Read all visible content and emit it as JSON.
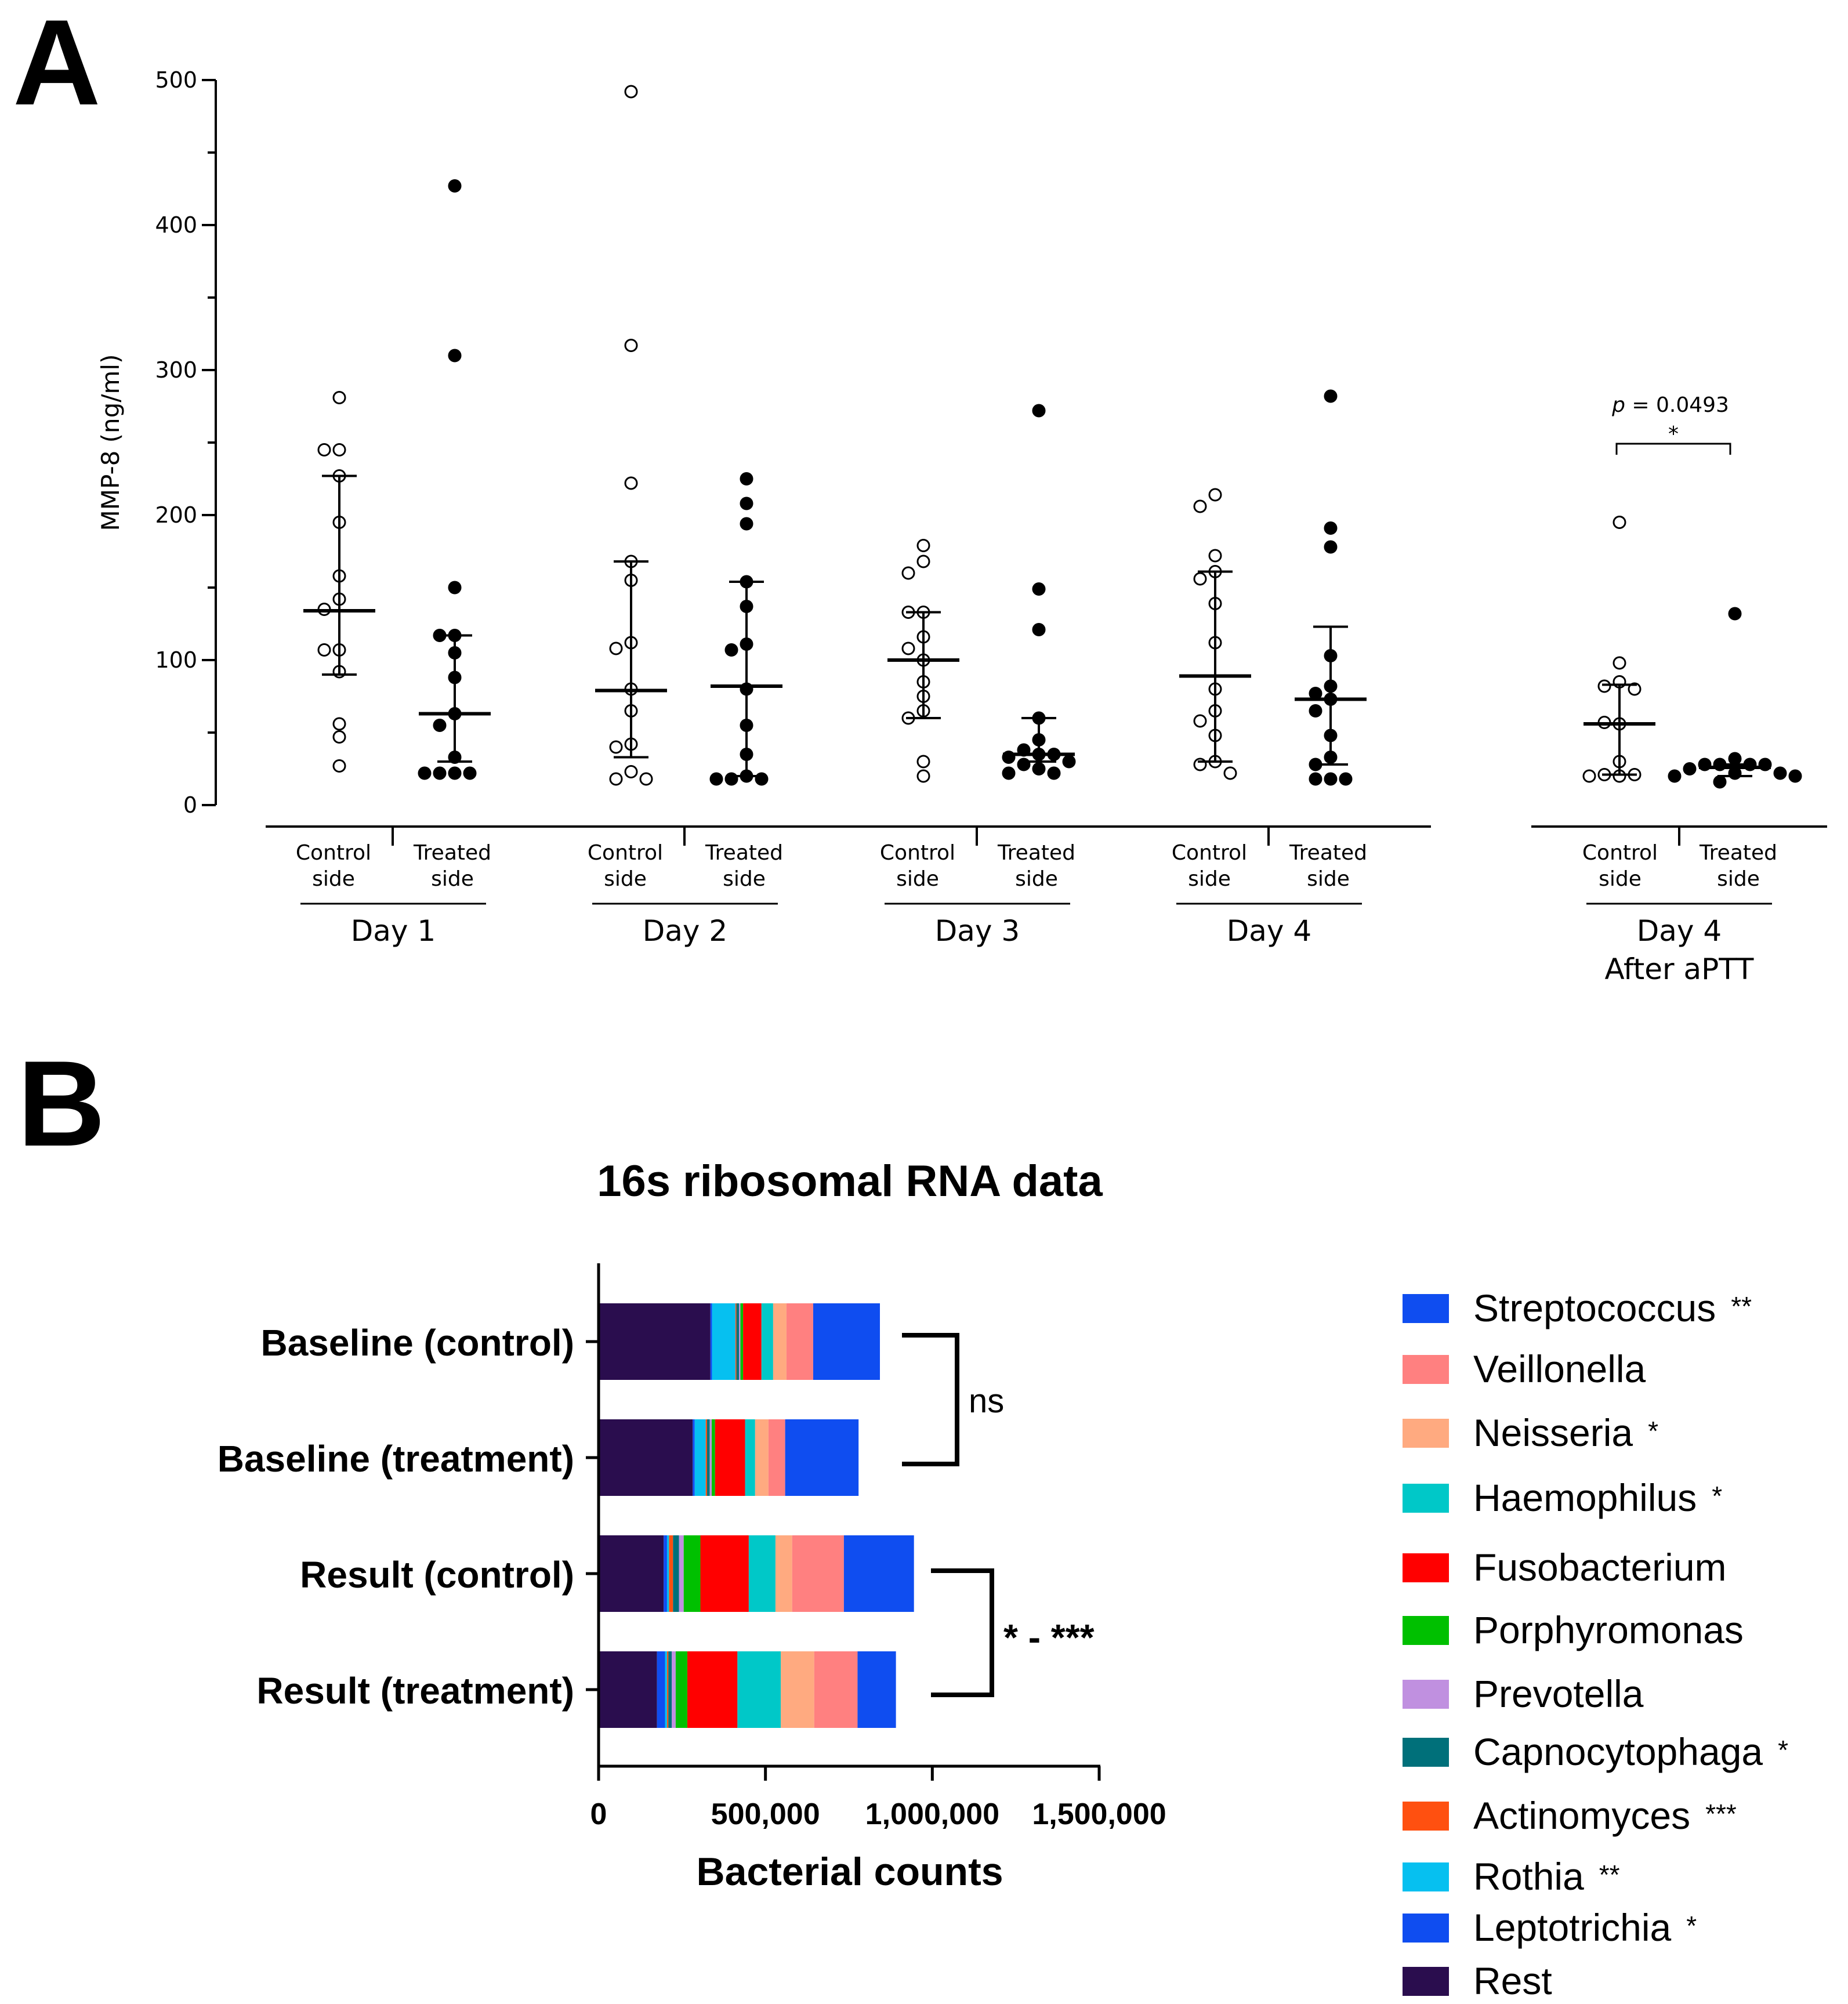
{
  "panels": {
    "a": "A",
    "b": "B"
  },
  "chart_data": [
    {
      "type": "scatter",
      "panel": "A",
      "ylabel": "MMP-8 (ng/ml)",
      "ylim": [
        0,
        500
      ],
      "yticks": [
        0,
        100,
        200,
        300,
        400,
        500
      ],
      "day_labels": [
        "Day 1",
        "Day 2",
        "Day 3",
        "Day 4"
      ],
      "extra_label": [
        "Day 4",
        "After aPTT"
      ],
      "side_labels": {
        "control": [
          "Control",
          "side"
        ],
        "treated": [
          "Treated",
          "side"
        ]
      },
      "annotation": {
        "p_letter": "p",
        "p_text": " = 0.0493",
        "star": "*"
      },
      "groups": [
        {
          "day": "Day 1",
          "side": "control",
          "filled": false,
          "median": 134,
          "q1": 90,
          "q3": 227,
          "points": [
            281,
            245,
            245,
            227,
            195,
            158,
            142,
            135,
            107,
            107,
            92,
            56,
            47,
            27
          ]
        },
        {
          "day": "Day 1",
          "side": "treated",
          "filled": true,
          "median": 63,
          "q1": 30,
          "q3": 117,
          "points": [
            427,
            310,
            150,
            117,
            117,
            105,
            88,
            63,
            55,
            33,
            22,
            22,
            22,
            22
          ]
        },
        {
          "day": "Day 2",
          "side": "control",
          "filled": false,
          "median": 79,
          "q1": 33,
          "q3": 168,
          "points": [
            492,
            317,
            222,
            168,
            155,
            112,
            108,
            80,
            65,
            42,
            40,
            23,
            18,
            18
          ]
        },
        {
          "day": "Day 2",
          "side": "treated",
          "filled": true,
          "median": 82,
          "q1": 20,
          "q3": 154,
          "points": [
            225,
            208,
            194,
            154,
            137,
            111,
            107,
            80,
            55,
            35,
            20,
            18,
            18,
            18
          ]
        },
        {
          "day": "Day 3",
          "side": "control",
          "filled": false,
          "median": 100,
          "q1": 60,
          "q3": 133,
          "points": [
            179,
            168,
            160,
            133,
            133,
            116,
            108,
            100,
            85,
            75,
            65,
            60,
            30,
            20
          ]
        },
        {
          "day": "Day 3",
          "side": "treated",
          "filled": true,
          "median": 35,
          "q1": 30,
          "q3": 60,
          "points": [
            272,
            149,
            121,
            60,
            45,
            38,
            35,
            35,
            33,
            30,
            28,
            25,
            22,
            22
          ]
        },
        {
          "day": "Day 4",
          "side": "control",
          "filled": false,
          "median": 89,
          "q1": 30,
          "q3": 161,
          "points": [
            214,
            206,
            172,
            161,
            156,
            139,
            112,
            80,
            65,
            58,
            48,
            30,
            28,
            22
          ]
        },
        {
          "day": "Day 4",
          "side": "treated",
          "filled": true,
          "median": 73,
          "q1": 28,
          "q3": 123,
          "points": [
            282,
            191,
            178,
            103,
            82,
            77,
            73,
            65,
            48,
            33,
            28,
            18,
            18,
            18
          ]
        },
        {
          "day": "After aPTT",
          "side": "control",
          "filled": false,
          "median": 56,
          "q1": 21,
          "q3": 83,
          "points": [
            195,
            98,
            85,
            82,
            80,
            56,
            57,
            30,
            20,
            21,
            21,
            20
          ]
        },
        {
          "day": "After aPTT",
          "side": "treated",
          "filled": true,
          "median": 26,
          "q1": 20,
          "q3": 28,
          "points": [
            132,
            32,
            28,
            28,
            28,
            28,
            25,
            22,
            22,
            20,
            20,
            16
          ]
        }
      ]
    },
    {
      "type": "bar",
      "panel": "B",
      "orientation": "horizontal",
      "stacked": true,
      "title": "16s ribosomal RNA data",
      "xlabel": "Bacterial counts",
      "xlim": [
        0,
        1500000
      ],
      "xtick_labels": [
        "0",
        "500,000",
        "1,000,000",
        "1,500,000"
      ],
      "xtick_values": [
        0,
        500000,
        1000000,
        1500000
      ],
      "categories": [
        "Baseline (control)",
        "Baseline (treatment)",
        "Result (control)",
        "Result (treatment)"
      ],
      "series": [
        {
          "name": "Rest",
          "color": "#2a0d4e",
          "values": [
            335000,
            282000,
            195000,
            175000
          ]
        },
        {
          "name": "Leptotrichia",
          "color": "#0f4df0",
          "values": [
            5000,
            6000,
            10000,
            24000
          ]
        },
        {
          "name": "Rothia",
          "color": "#06c0f0",
          "values": [
            70000,
            33000,
            6000,
            6000
          ]
        },
        {
          "name": "Actinomyces",
          "color": "#ff5010",
          "values": [
            3000,
            4000,
            12000,
            4000
          ]
        },
        {
          "name": "Capnocytophaga",
          "color": "#00707a",
          "values": [
            8000,
            8000,
            18000,
            10000
          ]
        },
        {
          "name": "Prevotella",
          "color": "#c090e0",
          "values": [
            4000,
            6000,
            14000,
            12000
          ]
        },
        {
          "name": "Porphyromonas",
          "color": "#00c000",
          "values": [
            8000,
            10000,
            50000,
            35000
          ]
        },
        {
          "name": "Fusobacterium",
          "color": "#ff0000",
          "values": [
            55000,
            90000,
            145000,
            150000
          ]
        },
        {
          "name": "Haemophilus",
          "color": "#00c8c8",
          "values": [
            35000,
            30000,
            80000,
            130000
          ]
        },
        {
          "name": "Neisseria",
          "color": "#ffaa80",
          "values": [
            40000,
            40000,
            50000,
            100000
          ]
        },
        {
          "name": "Veillonella",
          "color": "#ff8080",
          "values": [
            80000,
            50000,
            155000,
            130000
          ]
        },
        {
          "name": "Streptococcus",
          "color": "#0f4df0",
          "values": [
            200000,
            220000,
            210000,
            115000
          ]
        }
      ],
      "legend": [
        {
          "name": "Streptococcus",
          "stars": "**",
          "color": "#0f4df0"
        },
        {
          "name": "Veillonella",
          "stars": "",
          "color": "#ff8080"
        },
        {
          "name": "Neisseria",
          "stars": "*",
          "color": "#ffaa80"
        },
        {
          "name": "Haemophilus",
          "stars": "*",
          "color": "#00c8c8"
        },
        {
          "name": "Fusobacterium",
          "stars": "",
          "color": "#ff0000"
        },
        {
          "name": "Porphyromonas",
          "stars": "",
          "color": "#00c000"
        },
        {
          "name": "Prevotella",
          "stars": "",
          "color": "#c090e0"
        },
        {
          "name": "Capnocytophaga",
          "stars": "*",
          "color": "#00707a"
        },
        {
          "name": "Actinomyces",
          "stars": "***",
          "color": "#ff5010"
        },
        {
          "name": "Rothia",
          "stars": "**",
          "color": "#06c0f0"
        },
        {
          "name": "Leptotrichia",
          "stars": "*",
          "color": "#0f4df0"
        },
        {
          "name": "Rest",
          "stars": "",
          "color": "#2a0d4e"
        }
      ],
      "legend_placement": "right",
      "significance": [
        {
          "between": [
            "Baseline (control)",
            "Baseline (treatment)"
          ],
          "label": "ns"
        },
        {
          "between": [
            "Result (control)",
            "Result (treatment)"
          ],
          "label": "* - ***"
        }
      ]
    }
  ]
}
